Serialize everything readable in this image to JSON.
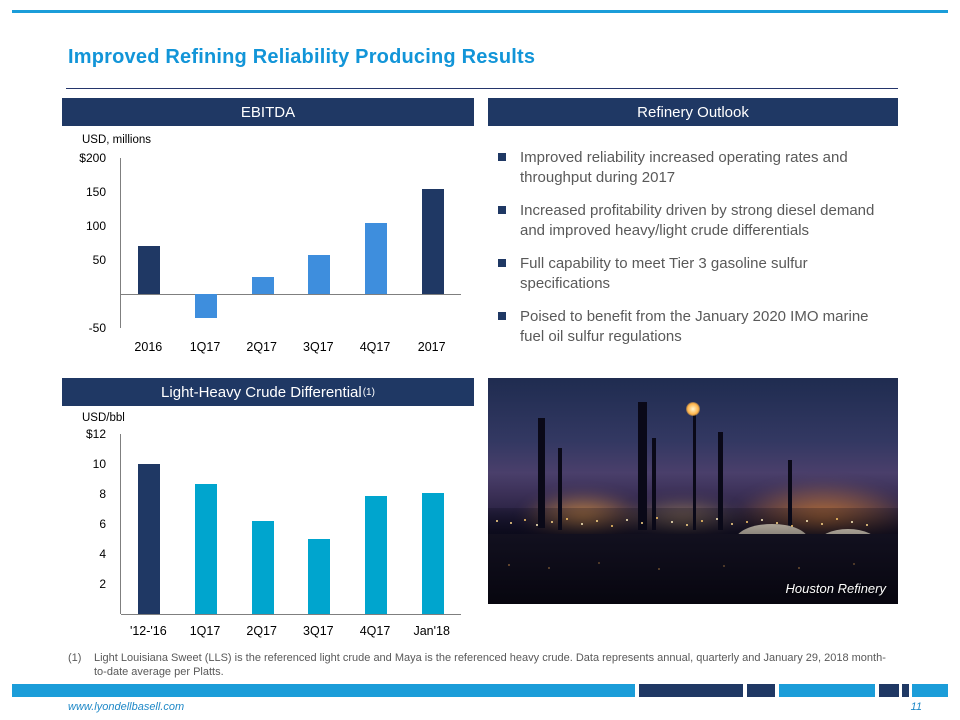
{
  "page": {
    "title": "Improved Refining Reliability Producing Results",
    "footnote_marker": "(1)",
    "footnote_text": "Light Louisiana Sweet (LLS) is the referenced light crude and Maya is the referenced heavy crude. Data represents annual, quarterly and January 29, 2018 month-to-date average per Platts.",
    "footer_url": "www.lyondellbasell.com",
    "page_number": "11"
  },
  "colors": {
    "accent_cyan": "#1B9DD9",
    "header_navy": "#1F3864",
    "bar_navy": "#1F3864",
    "bar_blue": "#3E8EDD",
    "bar_cyan": "#00A5CE",
    "body_text_gray": "#595959",
    "title_blue": "#1295D8"
  },
  "panels": {
    "ebitda": {
      "header": "EBITDA",
      "axis_label": "USD, millions"
    },
    "outlook": {
      "header": "Refinery Outlook",
      "bullets": [
        "Improved reliability increased operating rates and throughput during 2017",
        "Increased profitability driven by strong diesel demand and improved heavy/light crude differentials",
        "Full capability to meet Tier 3 gasoline sulfur specifications",
        "Poised to benefit from the January 2020 IMO marine fuel oil sulfur regulations"
      ]
    },
    "differential": {
      "header": "Light-Heavy Crude Differential",
      "header_sup": "(1)",
      "axis_label": "USD/bbl"
    },
    "photo": {
      "caption": "Houston Refinery"
    }
  },
  "chart_data": [
    {
      "type": "bar",
      "title": "EBITDA",
      "xlabel": "",
      "ylabel": "USD, millions",
      "categories": [
        "2016",
        "1Q17",
        "2Q17",
        "3Q17",
        "4Q17",
        "2017"
      ],
      "values": [
        70,
        -35,
        25,
        57,
        105,
        155
      ],
      "bar_colors": [
        "#1F3864",
        "#3E8EDD",
        "#3E8EDD",
        "#3E8EDD",
        "#3E8EDD",
        "#1F3864"
      ],
      "ylim": [
        -50,
        200
      ],
      "yticks": [
        {
          "v": 200,
          "label": "$200"
        },
        {
          "v": 150,
          "label": "150"
        },
        {
          "v": 100,
          "label": "100"
        },
        {
          "v": 50,
          "label": "50"
        },
        {
          "v": -50,
          "label": "-50"
        }
      ],
      "baseline": 0,
      "grid": false,
      "legend": null
    },
    {
      "type": "bar",
      "title": "Light-Heavy Crude Differential (1)",
      "xlabel": "",
      "ylabel": "USD/bbl",
      "categories": [
        "'12-'16",
        "1Q17",
        "2Q17",
        "3Q17",
        "4Q17",
        "Jan'18"
      ],
      "values": [
        10.0,
        8.7,
        6.2,
        5.0,
        7.9,
        8.1
      ],
      "bar_colors": [
        "#1F3864",
        "#00A5CE",
        "#00A5CE",
        "#00A5CE",
        "#00A5CE",
        "#00A5CE"
      ],
      "ylim": [
        0,
        12
      ],
      "yticks": [
        {
          "v": 12,
          "label": "$12"
        },
        {
          "v": 10,
          "label": "10"
        },
        {
          "v": 8,
          "label": "8"
        },
        {
          "v": 6,
          "label": "6"
        },
        {
          "v": 4,
          "label": "4"
        },
        {
          "v": 2,
          "label": "2"
        }
      ],
      "baseline": 0,
      "grid": false,
      "legend": null
    }
  ]
}
